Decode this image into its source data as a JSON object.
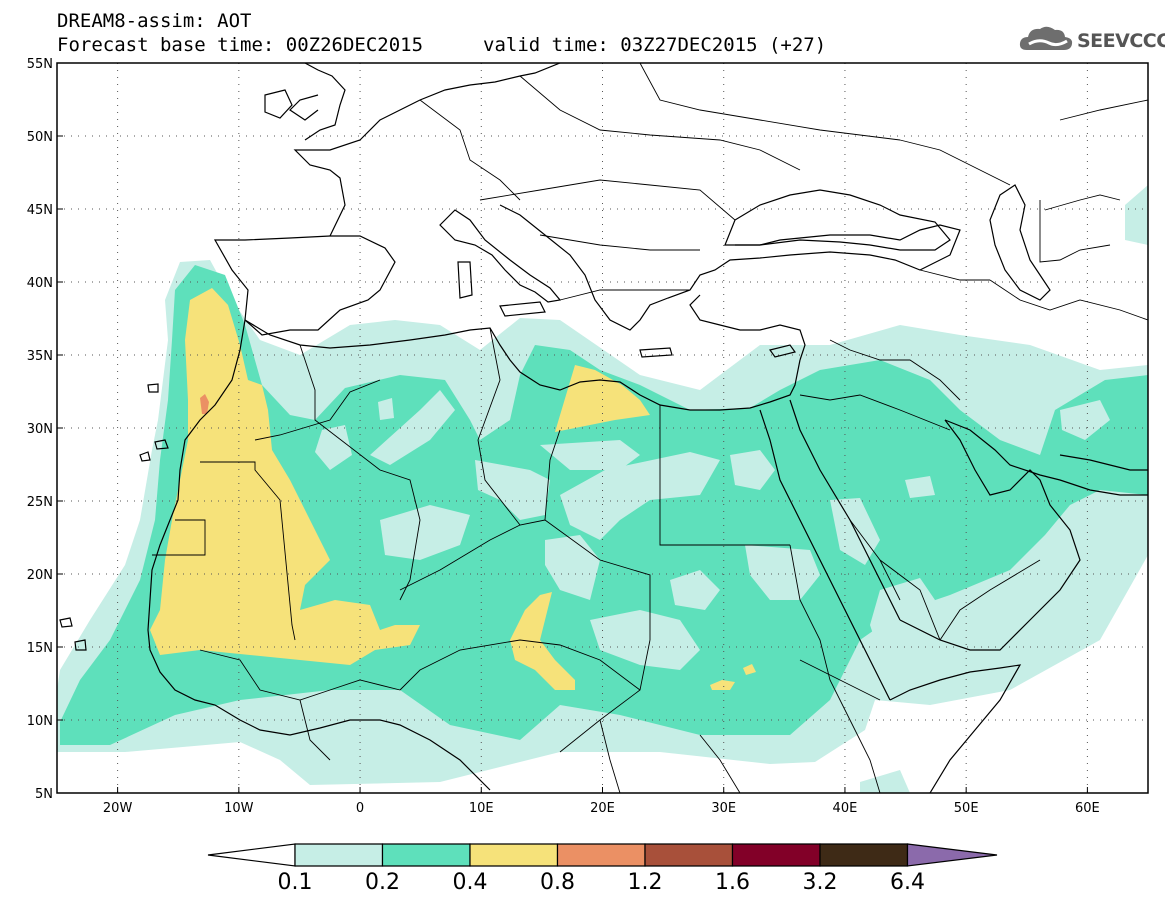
{
  "header": {
    "line1": "DREAM8-assim: AOT",
    "base": "Forecast base time: 00Z26DEC2015",
    "valid": "valid time: 03Z27DEC2015 (+27)"
  },
  "logo": {
    "text": "SEEVCCC",
    "icon": "cloud-icon"
  },
  "map": {
    "lon_range": [
      -25,
      65
    ],
    "lat_range": [
      5,
      55
    ],
    "lon_ticks": [
      "20W",
      "10W",
      "0",
      "10E",
      "20E",
      "30E",
      "40E",
      "50E",
      "60E"
    ],
    "lat_ticks": [
      "5N",
      "10N",
      "15N",
      "20N",
      "25N",
      "30N",
      "35N",
      "40N",
      "45N",
      "50N",
      "55N"
    ],
    "grid": true
  },
  "colorbar": {
    "levels": [
      "0.1",
      "0.2",
      "0.4",
      "0.8",
      "1.2",
      "1.6",
      "3.2",
      "6.4"
    ],
    "colors": [
      "#ffffff",
      "#c6eee6",
      "#5ee0bb",
      "#f6e27a",
      "#eb9064",
      "#a8503a",
      "#820028",
      "#3e2a16",
      "#8b6aab"
    ]
  }
}
